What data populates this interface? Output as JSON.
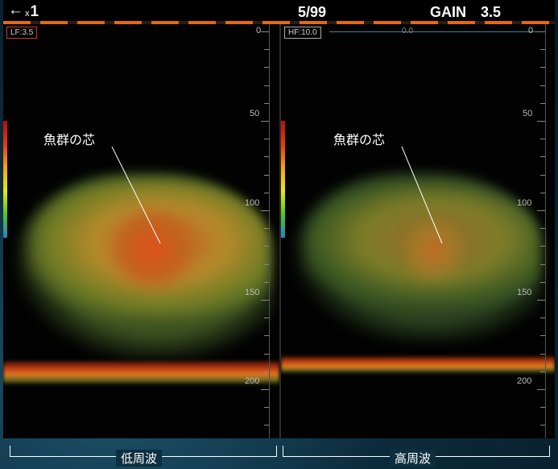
{
  "topbar": {
    "back_icon": "←",
    "zoom_prefix": "x",
    "zoom_value": "1",
    "page": "5/99",
    "gain_label": "GAIN",
    "gain_value": "3.5"
  },
  "left_panel": {
    "tag": "LF:3.5",
    "depth_labels": [
      "0",
      "50",
      "100",
      "150",
      "200"
    ],
    "annotation": "魚群の芯"
  },
  "right_panel": {
    "tag": "HF:10.0",
    "reading": "0.0",
    "depth_labels": [
      "0",
      "50",
      "100",
      "150",
      "200"
    ],
    "annotation": "魚群の芯"
  },
  "captions": {
    "left": "低周波",
    "right": "高周波"
  },
  "colors": {
    "accent_orange": "#e36a12",
    "lf_border": "#cc3333",
    "background": "#000000"
  }
}
